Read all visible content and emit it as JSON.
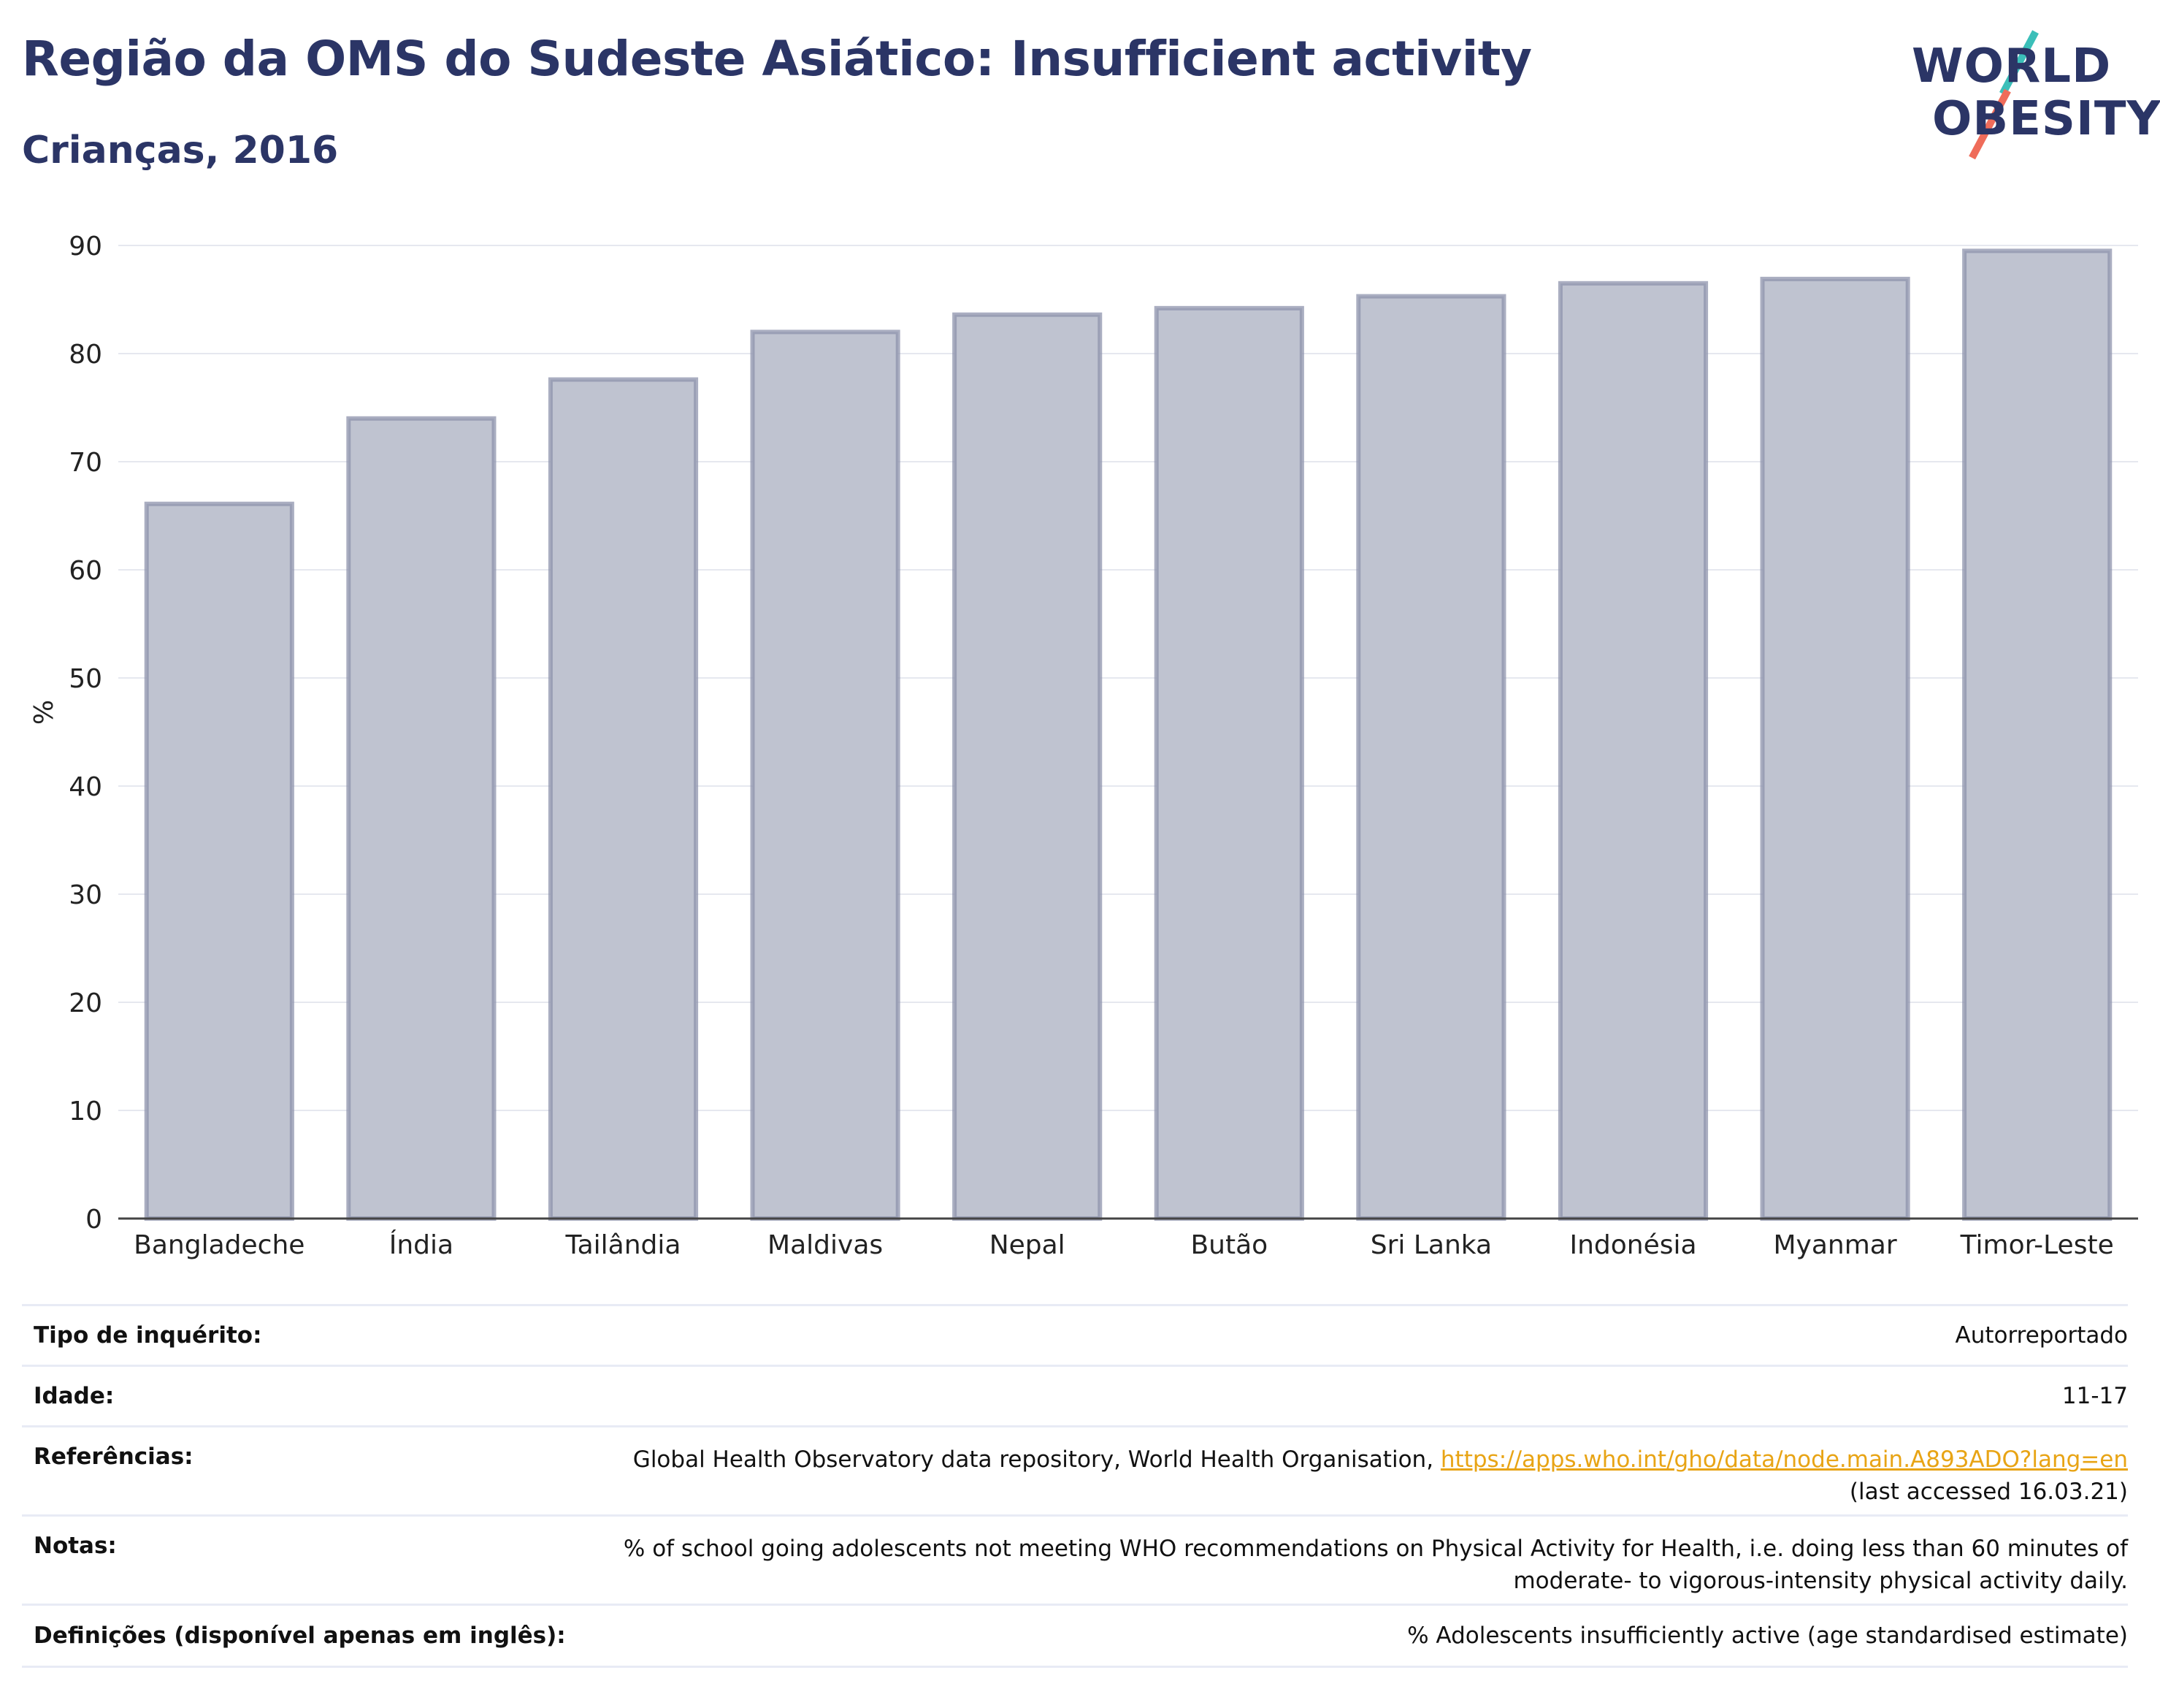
{
  "header": {
    "title": "Região da OMS do Sudeste Asiático: Insufficient activity",
    "subtitle": "Crianças, 2016"
  },
  "logo": {
    "line1": "WORLD",
    "line2": "OBESITY",
    "colors": {
      "navy": "#2b3566",
      "teal": "#3bbfb9",
      "coral": "#ef6c5a"
    }
  },
  "chart_data": {
    "type": "bar",
    "categories": [
      "Bangladeche",
      "Índia",
      "Tailândia",
      "Maldivas",
      "Nepal",
      "Butão",
      "Sri Lanka",
      "Indonésia",
      "Myanmar",
      "Timor-Leste"
    ],
    "values": [
      66.1,
      74.0,
      77.6,
      82.0,
      83.6,
      84.2,
      85.3,
      86.5,
      86.9,
      89.5
    ],
    "ylabel": "%",
    "xlabel": "",
    "ylim": [
      0,
      90
    ],
    "yticks": [
      "0",
      "10",
      "20",
      "30",
      "40",
      "50",
      "60",
      "70",
      "80",
      "90"
    ],
    "grid": true,
    "bar_color": "#bfc3d0",
    "bar_border_color": "#8d93ac"
  },
  "info_table": {
    "rows": [
      {
        "label": "Tipo de inquérito:",
        "value": "Autorreportado"
      },
      {
        "label": "Idade:",
        "value": "11-17"
      },
      {
        "label": "Referências:",
        "value_prefix": "Global Health Observatory data repository, World Health Organisation, ",
        "link": "https://apps.who.int/gho/data/node.main.A893ADO?lang=en",
        "value_suffix": "(last accessed 16.03.21)"
      },
      {
        "label": "Notas:",
        "value_line1": "% of school going adolescents not meeting WHO recommendations on Physical Activity for Health, i.e. doing less than 60 minutes of",
        "value_line2": "moderate- to vigorous-intensity physical activity daily."
      },
      {
        "label": "Definições (disponível apenas em inglês):",
        "value": "% Adolescents insufficiently active (age standardised estimate)"
      }
    ]
  }
}
